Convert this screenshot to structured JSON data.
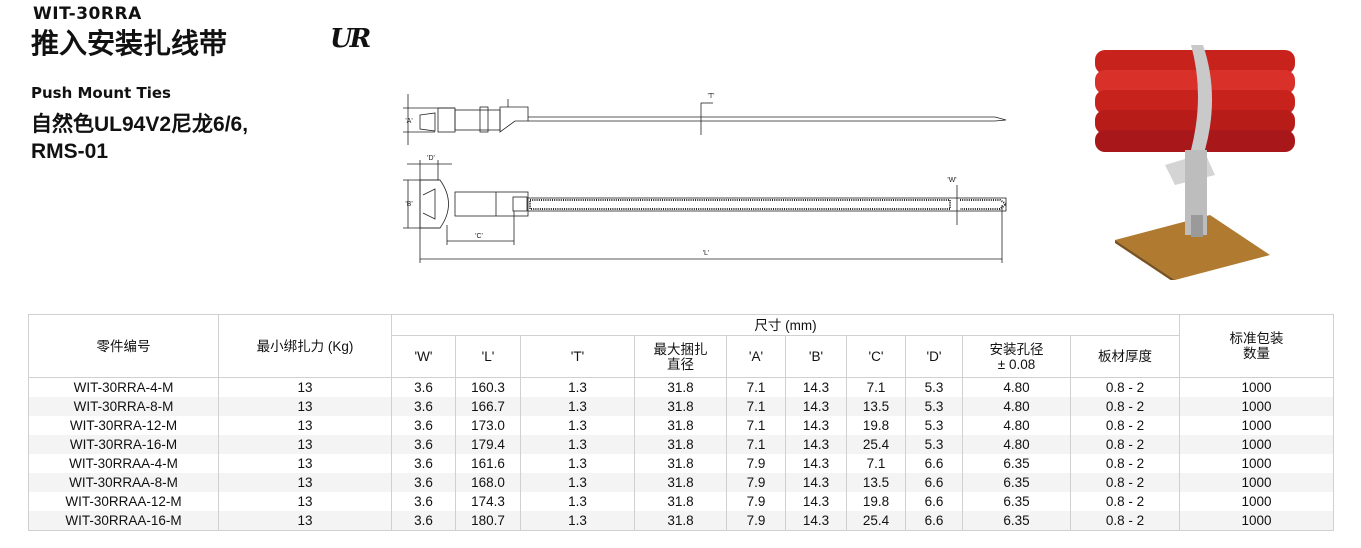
{
  "header": {
    "code": "WIT-30RRA",
    "title": "推入安装扎线带",
    "subtitle": "Push Mount Ties",
    "material_line1": "自然色UL94V2尼龙6/6,",
    "material_line2": "RMS-01",
    "cert_logo": "UR"
  },
  "drawing": {
    "labels": {
      "A": "'A'",
      "T": "'T'",
      "D": "'D'",
      "B": "'B'",
      "C": "'C'",
      "W": "'W'",
      "L": "'L'"
    }
  },
  "photo": {
    "description_icon": "product-photo"
  },
  "table": {
    "col_part": "零件编号",
    "col_force": "最小绑扎力 (Kg)",
    "col_group": "尺寸 (mm)",
    "col_pack": "标准包装\n数量",
    "dim_headers": [
      "'W'",
      "'L'",
      "'T'",
      "最大捆扎\n直径",
      "'A'",
      "'B'",
      "'C'",
      "'D'",
      "安装孔径\n± 0.08",
      "板材厚度"
    ],
    "rows": [
      [
        "WIT-30RRA-4-M",
        "13",
        "3.6",
        "160.3",
        "1.3",
        "31.8",
        "7.1",
        "14.3",
        "7.1",
        "5.3",
        "4.80",
        "0.8 - 2",
        "1000"
      ],
      [
        "WIT-30RRA-8-M",
        "13",
        "3.6",
        "166.7",
        "1.3",
        "31.8",
        "7.1",
        "14.3",
        "13.5",
        "5.3",
        "4.80",
        "0.8 - 2",
        "1000"
      ],
      [
        "WIT-30RRA-12-M",
        "13",
        "3.6",
        "173.0",
        "1.3",
        "31.8",
        "7.1",
        "14.3",
        "19.8",
        "5.3",
        "4.80",
        "0.8 - 2",
        "1000"
      ],
      [
        "WIT-30RRA-16-M",
        "13",
        "3.6",
        "179.4",
        "1.3",
        "31.8",
        "7.1",
        "14.3",
        "25.4",
        "5.3",
        "4.80",
        "0.8 - 2",
        "1000"
      ],
      [
        "WIT-30RRAA-4-M",
        "13",
        "3.6",
        "161.6",
        "1.3",
        "31.8",
        "7.9",
        "14.3",
        "7.1",
        "6.6",
        "6.35",
        "0.8 - 2",
        "1000"
      ],
      [
        "WIT-30RRAA-8-M",
        "13",
        "3.6",
        "168.0",
        "1.3",
        "31.8",
        "7.9",
        "14.3",
        "13.5",
        "6.6",
        "6.35",
        "0.8 - 2",
        "1000"
      ],
      [
        "WIT-30RRAA-12-M",
        "13",
        "3.6",
        "174.3",
        "1.3",
        "31.8",
        "7.9",
        "14.3",
        "19.8",
        "6.6",
        "6.35",
        "0.8 - 2",
        "1000"
      ],
      [
        "WIT-30RRAA-16-M",
        "13",
        "3.6",
        "180.7",
        "1.3",
        "31.8",
        "7.9",
        "14.3",
        "25.4",
        "6.6",
        "6.35",
        "0.8 - 2",
        "1000"
      ]
    ]
  }
}
